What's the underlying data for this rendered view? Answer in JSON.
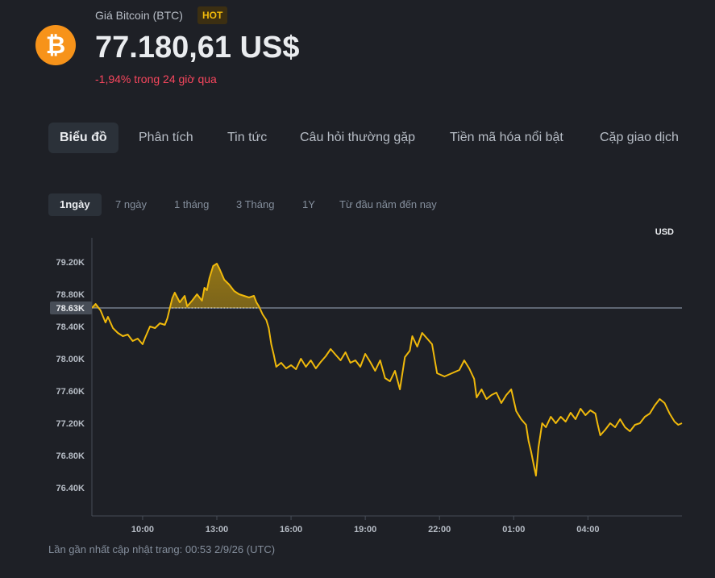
{
  "header": {
    "coin_symbol": "₿",
    "coin_name": "Giá Bitcoin (BTC)",
    "badge": "HOT",
    "price": "77.180,61 US$",
    "change": "-1,94% trong 24 giờ qua"
  },
  "tabs": [
    {
      "label": "Biểu đồ",
      "active": true
    },
    {
      "label": "Phân tích",
      "active": false
    },
    {
      "label": "Tin tức",
      "active": false
    },
    {
      "label": "Câu hỏi thường gặp",
      "active": false
    },
    {
      "label": "Tiền mã hóa nổi bật",
      "active": false
    },
    {
      "label": "Cặp giao dịch",
      "active": false
    }
  ],
  "ranges": [
    {
      "label": "1ngày",
      "active": true
    },
    {
      "label": "7 ngày",
      "active": false
    },
    {
      "label": "1 tháng",
      "active": false
    },
    {
      "label": "3 Tháng",
      "active": false
    },
    {
      "label": "1Y",
      "active": false
    },
    {
      "label": "Từ đầu năm đến nay",
      "active": false
    }
  ],
  "footer": "Lần gần nhất cập nhật trang: 00:53 2/9/26 (UTC)",
  "colors": {
    "background": "#1e2026",
    "line": "#f0b90b",
    "negative": "#f6465d",
    "axis_text": "#b7bdc6",
    "reference_line": "#5e6673"
  },
  "chart_data": {
    "type": "line",
    "currency_label": "USD",
    "reference_label": "78.63K",
    "reference_value": 78.63,
    "y_ticks": [
      {
        "label": "79.20K",
        "value": 79.2
      },
      {
        "label": "78.80K",
        "value": 78.8
      },
      {
        "label": "78.40K",
        "value": 78.4
      },
      {
        "label": "78.00K",
        "value": 78.0
      },
      {
        "label": "77.60K",
        "value": 77.6
      },
      {
        "label": "77.20K",
        "value": 77.2
      },
      {
        "label": "76.80K",
        "value": 76.8
      },
      {
        "label": "76.40K",
        "value": 76.4
      }
    ],
    "ylim": [
      76.05,
      79.5
    ],
    "x_ticks": [
      {
        "label": "10:00",
        "hour": 10
      },
      {
        "label": "13:00",
        "hour": 13
      },
      {
        "label": "16:00",
        "hour": 16
      },
      {
        "label": "19:00",
        "hour": 19
      },
      {
        "label": "22:00",
        "hour": 22
      },
      {
        "label": "01:00",
        "hour": 25
      },
      {
        "label": "04:00",
        "hour": 28
      }
    ],
    "xlim": [
      7.95,
      31.8
    ],
    "highlight_threshold": 78.63,
    "series": [
      {
        "points": [
          [
            7.95,
            78.63
          ],
          [
            8.1,
            78.68
          ],
          [
            8.3,
            78.6
          ],
          [
            8.5,
            78.45
          ],
          [
            8.6,
            78.52
          ],
          [
            8.8,
            78.38
          ],
          [
            9.0,
            78.32
          ],
          [
            9.2,
            78.28
          ],
          [
            9.4,
            78.3
          ],
          [
            9.6,
            78.22
          ],
          [
            9.8,
            78.25
          ],
          [
            10.0,
            78.18
          ],
          [
            10.1,
            78.26
          ],
          [
            10.3,
            78.4
          ],
          [
            10.5,
            78.38
          ],
          [
            10.7,
            78.44
          ],
          [
            10.9,
            78.42
          ],
          [
            11.0,
            78.5
          ],
          [
            11.2,
            78.75
          ],
          [
            11.3,
            78.82
          ],
          [
            11.5,
            78.7
          ],
          [
            11.7,
            78.78
          ],
          [
            11.8,
            78.65
          ],
          [
            12.0,
            78.72
          ],
          [
            12.2,
            78.8
          ],
          [
            12.4,
            78.72
          ],
          [
            12.5,
            78.88
          ],
          [
            12.6,
            78.85
          ],
          [
            12.7,
            79.0
          ],
          [
            12.85,
            79.15
          ],
          [
            13.0,
            79.18
          ],
          [
            13.1,
            79.12
          ],
          [
            13.3,
            78.98
          ],
          [
            13.5,
            78.92
          ],
          [
            13.7,
            78.84
          ],
          [
            13.9,
            78.8
          ],
          [
            14.1,
            78.78
          ],
          [
            14.3,
            78.76
          ],
          [
            14.5,
            78.78
          ],
          [
            14.6,
            78.7
          ],
          [
            14.7,
            78.65
          ],
          [
            14.85,
            78.55
          ],
          [
            15.0,
            78.48
          ],
          [
            15.1,
            78.38
          ],
          [
            15.2,
            78.18
          ],
          [
            15.3,
            78.05
          ],
          [
            15.4,
            77.9
          ],
          [
            15.6,
            77.95
          ],
          [
            15.8,
            77.88
          ],
          [
            16.0,
            77.92
          ],
          [
            16.2,
            77.87
          ],
          [
            16.4,
            78.0
          ],
          [
            16.6,
            77.9
          ],
          [
            16.8,
            77.98
          ],
          [
            17.0,
            77.88
          ],
          [
            17.2,
            77.96
          ],
          [
            17.4,
            78.03
          ],
          [
            17.6,
            78.12
          ],
          [
            17.8,
            78.05
          ],
          [
            18.0,
            77.98
          ],
          [
            18.2,
            78.08
          ],
          [
            18.4,
            77.95
          ],
          [
            18.6,
            77.98
          ],
          [
            18.8,
            77.9
          ],
          [
            19.0,
            78.06
          ],
          [
            19.2,
            77.96
          ],
          [
            19.4,
            77.85
          ],
          [
            19.6,
            77.98
          ],
          [
            19.8,
            77.76
          ],
          [
            20.0,
            77.72
          ],
          [
            20.2,
            77.85
          ],
          [
            20.4,
            77.62
          ],
          [
            20.6,
            78.02
          ],
          [
            20.8,
            78.1
          ],
          [
            20.9,
            78.28
          ],
          [
            21.1,
            78.15
          ],
          [
            21.3,
            78.32
          ],
          [
            21.5,
            78.25
          ],
          [
            21.7,
            78.18
          ],
          [
            21.9,
            77.82
          ],
          [
            22.2,
            77.78
          ],
          [
            22.5,
            77.82
          ],
          [
            22.8,
            77.86
          ],
          [
            23.0,
            77.98
          ],
          [
            23.2,
            77.88
          ],
          [
            23.4,
            77.75
          ],
          [
            23.5,
            77.52
          ],
          [
            23.7,
            77.62
          ],
          [
            23.9,
            77.5
          ],
          [
            24.1,
            77.55
          ],
          [
            24.3,
            77.58
          ],
          [
            24.5,
            77.45
          ],
          [
            24.7,
            77.55
          ],
          [
            24.9,
            77.62
          ],
          [
            25.1,
            77.35
          ],
          [
            25.3,
            77.25
          ],
          [
            25.5,
            77.18
          ],
          [
            25.6,
            76.98
          ],
          [
            25.7,
            76.85
          ],
          [
            25.8,
            76.7
          ],
          [
            25.9,
            76.55
          ],
          [
            26.0,
            76.9
          ],
          [
            26.15,
            77.2
          ],
          [
            26.3,
            77.15
          ],
          [
            26.5,
            77.28
          ],
          [
            26.7,
            77.2
          ],
          [
            26.9,
            77.28
          ],
          [
            27.1,
            77.22
          ],
          [
            27.3,
            77.33
          ],
          [
            27.5,
            77.25
          ],
          [
            27.7,
            77.38
          ],
          [
            27.9,
            77.3
          ],
          [
            28.1,
            77.36
          ],
          [
            28.3,
            77.32
          ],
          [
            28.4,
            77.18
          ],
          [
            28.5,
            77.05
          ],
          [
            28.7,
            77.12
          ],
          [
            28.9,
            77.2
          ],
          [
            29.1,
            77.15
          ],
          [
            29.3,
            77.25
          ],
          [
            29.5,
            77.15
          ],
          [
            29.7,
            77.1
          ],
          [
            29.9,
            77.18
          ],
          [
            30.1,
            77.2
          ],
          [
            30.3,
            77.28
          ],
          [
            30.5,
            77.32
          ],
          [
            30.7,
            77.42
          ],
          [
            30.9,
            77.5
          ],
          [
            31.1,
            77.45
          ],
          [
            31.3,
            77.32
          ],
          [
            31.5,
            77.22
          ],
          [
            31.65,
            77.18
          ],
          [
            31.8,
            77.2
          ]
        ]
      }
    ]
  }
}
